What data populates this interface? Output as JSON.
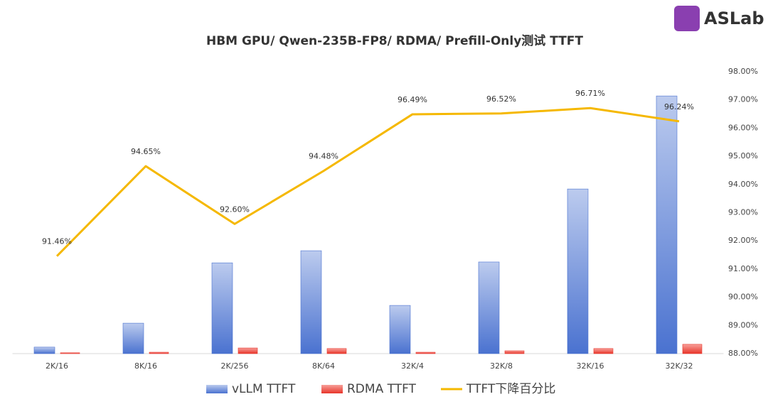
{
  "logo": "ASLab",
  "chart_data": {
    "type": "bar_line",
    "title": "HBM GPU/ Qwen-235B-FP8/ RDMA/ Prefill-Only测试 TTFT",
    "categories": [
      "2K/16",
      "8K/16",
      "2K/256",
      "8K/64",
      "32K/4",
      "32K/8",
      "32K/16",
      "32K/32"
    ],
    "ylim": [
      0,
      100
    ],
    "y2lim": [
      88,
      98
    ],
    "y2ticks": [
      {
        "value": 88,
        "label": "88.00%"
      },
      {
        "value": 89,
        "label": "89.00%"
      },
      {
        "value": 90,
        "label": "90.00%"
      },
      {
        "value": 91,
        "label": "91.00%"
      },
      {
        "value": 92,
        "label": "92.00%"
      },
      {
        "value": 93,
        "label": "93.00%"
      },
      {
        "value": 94,
        "label": "94.00%"
      },
      {
        "value": 95,
        "label": "95.00%"
      },
      {
        "value": 96,
        "label": "96.00%"
      },
      {
        "value": 97,
        "label": "97.00%"
      },
      {
        "value": 98,
        "label": "98.00%"
      }
    ],
    "legend": "bottom",
    "series": [
      {
        "name": "vLLM TTFT",
        "type": "bar",
        "color": "#4a72d0",
        "values": [
          2.3,
          10.8,
          32.2,
          36.5,
          17.1,
          32.5,
          58.4,
          91.4
        ]
      },
      {
        "name": "RDMA TTFT",
        "type": "bar",
        "color": "#e8352a",
        "values": [
          0.3,
          0.5,
          2.0,
          1.8,
          0.5,
          1.0,
          1.8,
          3.3
        ]
      },
      {
        "name": "TTFT下降百分比",
        "type": "line",
        "axis": "y2",
        "color": "#f5b800",
        "values": [
          91.46,
          94.65,
          92.6,
          94.48,
          96.49,
          96.52,
          96.71,
          96.24
        ],
        "value_labels": [
          "91.46%",
          "94.65%",
          "92.60%",
          "94.48%",
          "96.49%",
          "96.52%",
          "96.71%",
          "96.24%"
        ]
      }
    ]
  }
}
